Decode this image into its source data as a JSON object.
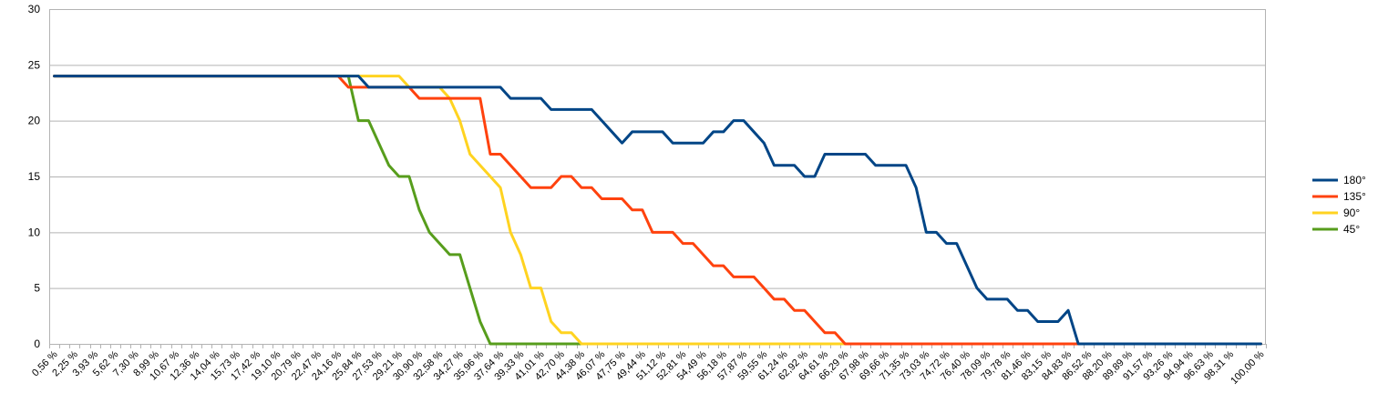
{
  "chart_data": {
    "type": "line",
    "title": "",
    "xlabel": "",
    "ylabel": "",
    "ylim": [
      0,
      30
    ],
    "yticks": [
      0,
      5,
      10,
      15,
      20,
      25,
      30
    ],
    "grid": true,
    "legend": "right",
    "x_count": 120,
    "x_tick_labels": [
      "0,56 %",
      "2,25 %",
      "3,93 %",
      "5,62 %",
      "7,30 %",
      "8,99 %",
      "10,67 %",
      "12,36 %",
      "14,04 %",
      "15,73 %",
      "17,42 %",
      "19,10 %",
      "20,79 %",
      "22,47 %",
      "24,16 %",
      "25,84 %",
      "27,53 %",
      "29,21 %",
      "30,90 %",
      "32,58 %",
      "34,27 %",
      "35,96 %",
      "37,64 %",
      "39,33 %",
      "41,01 %",
      "42,70 %",
      "44,38 %",
      "46,07 %",
      "47,75 %",
      "49,44 %",
      "51,12 %",
      "52,81 %",
      "54,49 %",
      "56,18 %",
      "57,87 %",
      "59,55 %",
      "61,24 %",
      "62,92 %",
      "64,61 %",
      "66,29 %",
      "67,98 %",
      "69,66 %",
      "71,35 %",
      "73,03 %",
      "74,72 %",
      "76,40 %",
      "78,09 %",
      "79,78 %",
      "81,46 %",
      "83,15 %",
      "84,83 %",
      "86,52 %",
      "88,20 %",
      "89,89 %",
      "91,57 %",
      "93,26 %",
      "94,94 %",
      "96,63 %",
      "98,31 %",
      "100,00 %"
    ],
    "x_tick_positions": [
      0,
      2,
      4,
      6,
      8,
      10,
      12,
      14,
      16,
      18,
      20,
      22,
      24,
      26,
      28,
      30,
      32,
      34,
      36,
      38,
      40,
      42,
      44,
      46,
      48,
      50,
      52,
      54,
      56,
      58,
      60,
      62,
      64,
      66,
      68,
      70,
      72,
      74,
      76,
      78,
      80,
      82,
      84,
      86,
      88,
      90,
      92,
      94,
      96,
      98,
      100,
      102,
      104,
      106,
      108,
      110,
      112,
      114,
      116,
      119
    ],
    "series": [
      {
        "name": "180°",
        "color": "#004586",
        "values": [
          24,
          24,
          24,
          24,
          24,
          24,
          24,
          24,
          24,
          24,
          24,
          24,
          24,
          24,
          24,
          24,
          24,
          24,
          24,
          24,
          24,
          24,
          24,
          24,
          24,
          24,
          24,
          24,
          24,
          24,
          24,
          23,
          23,
          23,
          23,
          23,
          23,
          23,
          23,
          23,
          23,
          23,
          23,
          23,
          23,
          22,
          22,
          22,
          22,
          21,
          21,
          21,
          21,
          21,
          20,
          19,
          18,
          19,
          19,
          19,
          19,
          18,
          18,
          18,
          18,
          19,
          19,
          20,
          20,
          19,
          18,
          16,
          16,
          16,
          15,
          15,
          17,
          17,
          17,
          17,
          17,
          16,
          16,
          16,
          16,
          14,
          10,
          10,
          9,
          9,
          7,
          5,
          4,
          4,
          4,
          3,
          3,
          2,
          2,
          2,
          3,
          0,
          0,
          0,
          0,
          0,
          0,
          0,
          0,
          0,
          0,
          0,
          0,
          0,
          0,
          0,
          0,
          0,
          0,
          0
        ]
      },
      {
        "name": "135°",
        "color": "#ff420e",
        "values": [
          24,
          24,
          24,
          24,
          24,
          24,
          24,
          24,
          24,
          24,
          24,
          24,
          24,
          24,
          24,
          24,
          24,
          24,
          24,
          24,
          24,
          24,
          24,
          24,
          24,
          24,
          24,
          24,
          24,
          23,
          23,
          23,
          23,
          23,
          23,
          23,
          22,
          22,
          22,
          22,
          22,
          22,
          22,
          17,
          17,
          16,
          15,
          14,
          14,
          14,
          15,
          15,
          14,
          14,
          13,
          13,
          13,
          12,
          12,
          10,
          10,
          10,
          9,
          9,
          8,
          7,
          7,
          6,
          6,
          6,
          5,
          4,
          4,
          3,
          3,
          2,
          1,
          1,
          0,
          0,
          0,
          0,
          0,
          0,
          0,
          0,
          0,
          0,
          0,
          0,
          0,
          0,
          0,
          0,
          0,
          0,
          0,
          0,
          0,
          0,
          0,
          0,
          0,
          0,
          0,
          0,
          0,
          0,
          0,
          0,
          0,
          0,
          0,
          0,
          0,
          0,
          0,
          0,
          0,
          0
        ]
      },
      {
        "name": "90°",
        "color": "#ffd320",
        "values": [
          24,
          24,
          24,
          24,
          24,
          24,
          24,
          24,
          24,
          24,
          24,
          24,
          24,
          24,
          24,
          24,
          24,
          24,
          24,
          24,
          24,
          24,
          24,
          24,
          24,
          24,
          24,
          24,
          24,
          24,
          24,
          24,
          24,
          24,
          24,
          23,
          23,
          23,
          23,
          22,
          20,
          17,
          16,
          15,
          14,
          10,
          8,
          5,
          5,
          2,
          1,
          1,
          0,
          0,
          0,
          0,
          0,
          0,
          0,
          0,
          0,
          0,
          0,
          0,
          0,
          0,
          0,
          0,
          0,
          0,
          0,
          0,
          0,
          0,
          0,
          0,
          0,
          0,
          0,
          0,
          0,
          0,
          0,
          0,
          0,
          0,
          0,
          0,
          0,
          0,
          0,
          0,
          0,
          0,
          0,
          0,
          0,
          0,
          0,
          0,
          0,
          0,
          0,
          0,
          0,
          0,
          0,
          0,
          0,
          0,
          0,
          0,
          0,
          0,
          0,
          0,
          0,
          0,
          0,
          0
        ]
      },
      {
        "name": "45°",
        "color": "#579d1c",
        "values": [
          24,
          24,
          24,
          24,
          24,
          24,
          24,
          24,
          24,
          24,
          24,
          24,
          24,
          24,
          24,
          24,
          24,
          24,
          24,
          24,
          24,
          24,
          24,
          24,
          24,
          24,
          24,
          24,
          24,
          24,
          20,
          20,
          18,
          16,
          15,
          15,
          12,
          10,
          9,
          8,
          8,
          5,
          2,
          0,
          0,
          0,
          0,
          0,
          0,
          0,
          0,
          0,
          0,
          0,
          0,
          0,
          0,
          0,
          0,
          0,
          0,
          0,
          0,
          0,
          0,
          0,
          0,
          0,
          0,
          0,
          0,
          0,
          0,
          0,
          0,
          0,
          0,
          0,
          0,
          0,
          0,
          0,
          0,
          0,
          0,
          0,
          0,
          0,
          0,
          0,
          0,
          0,
          0,
          0,
          0,
          0,
          0,
          0,
          0,
          0,
          0,
          0,
          0,
          0,
          0,
          0,
          0,
          0,
          0,
          0,
          0,
          0,
          0,
          0,
          0,
          0,
          0,
          0,
          0,
          0
        ]
      }
    ]
  }
}
